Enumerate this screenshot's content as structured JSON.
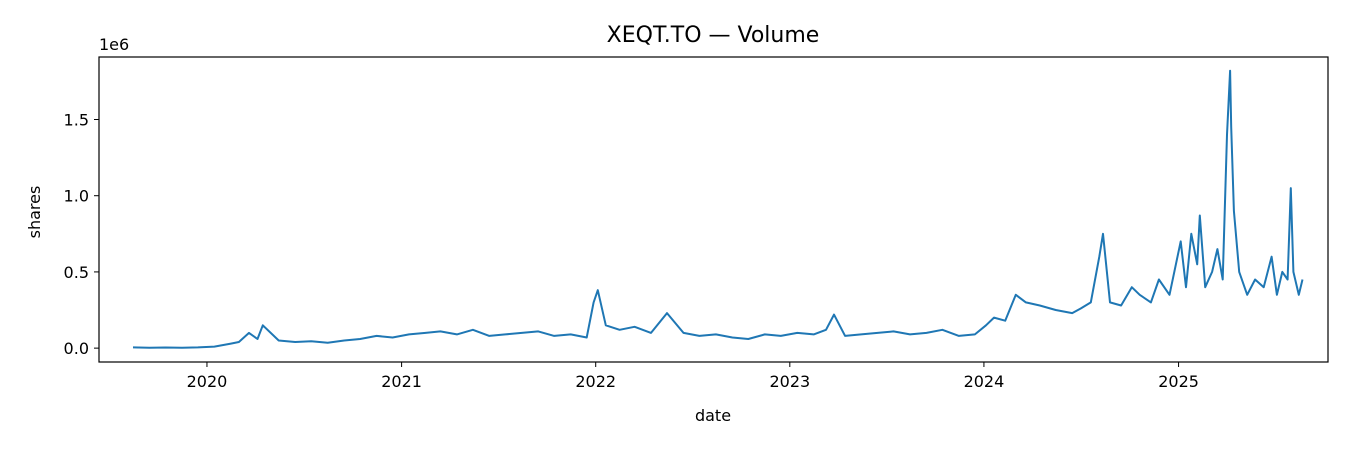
{
  "chart_data": {
    "type": "line",
    "title": "XEQT.TO — Volume",
    "xlabel": "date",
    "ylabel": "shares",
    "y_offset_label": "1e6",
    "x_tick_labels": [
      "2020",
      "2021",
      "2022",
      "2023",
      "2024",
      "2025"
    ],
    "y_tick_labels": [
      "0.0",
      "0.5",
      "1.0",
      "1.5"
    ],
    "y_tick_values": [
      0,
      500000,
      1000000,
      1500000
    ],
    "xlim": [
      "2019-06-12",
      "2025-10-09"
    ],
    "ylim": [
      -91000,
      1910000
    ],
    "grid": false,
    "line_color": "#1f77b4",
    "series": [
      {
        "x": [
          "2019-08-15",
          "2019-09-15",
          "2019-10-15",
          "2019-11-15",
          "2019-12-15",
          "2020-01-15",
          "2020-02-15",
          "2020-03-01",
          "2020-03-20",
          "2020-04-05",
          "2020-04-15",
          "2020-05-15",
          "2020-06-15",
          "2020-07-15",
          "2020-08-15",
          "2020-09-15",
          "2020-10-15",
          "2020-11-15",
          "2020-12-15",
          "2021-01-15",
          "2021-02-15",
          "2021-03-15",
          "2021-04-15",
          "2021-05-15",
          "2021-06-15",
          "2021-07-15",
          "2021-08-15",
          "2021-09-15",
          "2021-10-15",
          "2021-11-15",
          "2021-12-15",
          "2021-12-28",
          "2022-01-05",
          "2022-01-20",
          "2022-02-15",
          "2022-03-15",
          "2022-04-15",
          "2022-05-15",
          "2022-06-15",
          "2022-07-15",
          "2022-08-15",
          "2022-09-15",
          "2022-10-15",
          "2022-11-15",
          "2022-12-15",
          "2023-01-15",
          "2023-02-15",
          "2023-03-10",
          "2023-03-25",
          "2023-04-15",
          "2023-05-15",
          "2023-06-15",
          "2023-07-15",
          "2023-08-15",
          "2023-09-15",
          "2023-10-15",
          "2023-11-15",
          "2023-12-15",
          "2024-01-05",
          "2024-01-20",
          "2024-02-10",
          "2024-03-01",
          "2024-03-20",
          "2024-04-15",
          "2024-05-15",
          "2024-06-15",
          "2024-07-01",
          "2024-07-20",
          "2024-08-05",
          "2024-08-12",
          "2024-08-25",
          "2024-09-15",
          "2024-10-05",
          "2024-10-20",
          "2024-11-10",
          "2024-11-25",
          "2024-12-15",
          "2025-01-05",
          "2025-01-15",
          "2025-01-25",
          "2025-02-05",
          "2025-02-10",
          "2025-02-20",
          "2025-03-05",
          "2025-03-15",
          "2025-03-25",
          "2025-04-02",
          "2025-04-08",
          "2025-04-10",
          "2025-04-15",
          "2025-04-25",
          "2025-05-10",
          "2025-05-25",
          "2025-06-10",
          "2025-06-25",
          "2025-07-05",
          "2025-07-15",
          "2025-07-25",
          "2025-07-31",
          "2025-08-05",
          "2025-08-15",
          "2025-08-22"
        ],
        "values": [
          5000,
          3000,
          4000,
          3000,
          5000,
          10000,
          30000,
          40000,
          100000,
          60000,
          150000,
          50000,
          40000,
          45000,
          35000,
          50000,
          60000,
          80000,
          70000,
          90000,
          100000,
          110000,
          90000,
          120000,
          80000,
          90000,
          100000,
          110000,
          80000,
          90000,
          70000,
          300000,
          380000,
          150000,
          120000,
          140000,
          100000,
          230000,
          100000,
          80000,
          90000,
          70000,
          60000,
          90000,
          80000,
          100000,
          90000,
          120000,
          220000,
          80000,
          90000,
          100000,
          110000,
          90000,
          100000,
          120000,
          80000,
          90000,
          150000,
          200000,
          180000,
          350000,
          300000,
          280000,
          250000,
          230000,
          260000,
          300000,
          600000,
          750000,
          300000,
          280000,
          400000,
          350000,
          300000,
          450000,
          350000,
          700000,
          400000,
          750000,
          550000,
          870000,
          400000,
          500000,
          650000,
          450000,
          1400000,
          1820000,
          1450000,
          900000,
          500000,
          350000,
          450000,
          400000,
          600000,
          350000,
          500000,
          450000,
          1050000,
          500000,
          350000,
          450000
        ]
      }
    ]
  }
}
